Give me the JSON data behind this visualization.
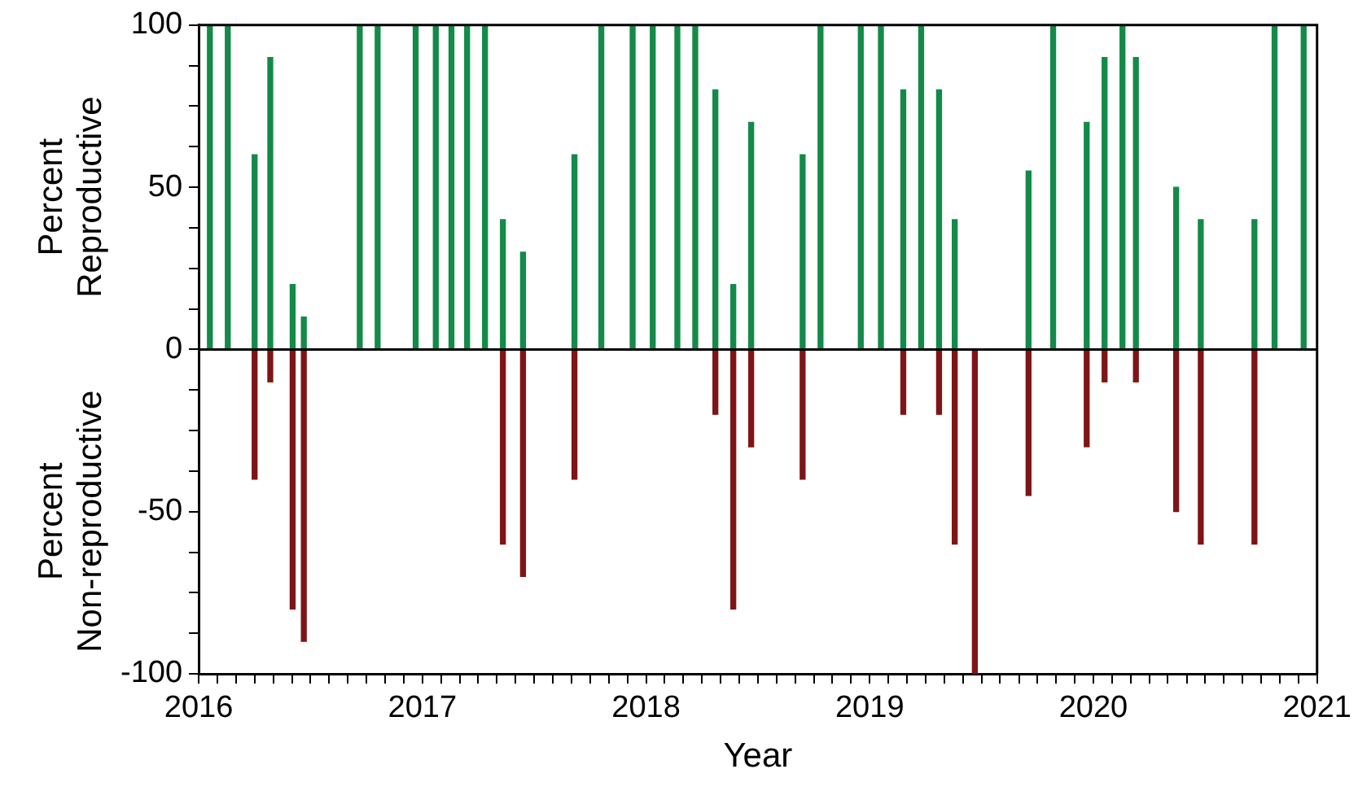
{
  "chart_data": {
    "type": "bar",
    "xlabel": "Year",
    "ylabel": "Percent Reproductive",
    "annotations": [
      "Percent Non-reproductive"
    ],
    "stacked": true,
    "x": [
      2016.05,
      2016.13,
      2016.25,
      2016.32,
      2016.42,
      2016.47,
      2016.72,
      2016.8,
      2016.97,
      2017.06,
      2017.13,
      2017.2,
      2017.28,
      2017.36,
      2017.45,
      2017.68,
      2017.8,
      2017.94,
      2018.03,
      2018.14,
      2018.22,
      2018.31,
      2018.39,
      2018.47,
      2018.7,
      2018.78,
      2018.96,
      2019.05,
      2019.15,
      2019.23,
      2019.31,
      2019.38,
      2019.47,
      2019.71,
      2019.82,
      2019.97,
      2020.05,
      2020.13,
      2020.19,
      2020.37,
      2020.48,
      2020.72,
      2020.81,
      2020.94
    ],
    "series": [
      {
        "color": "#138a48",
        "values": [
          100,
          100,
          60,
          90,
          20,
          10,
          100,
          100,
          100,
          100,
          100,
          100,
          100,
          40,
          30,
          60,
          100,
          100,
          100,
          100,
          100,
          80,
          20,
          70,
          60,
          100,
          100,
          100,
          80,
          100,
          80,
          40,
          0,
          55,
          100,
          70,
          90,
          100,
          90,
          50,
          40,
          40,
          100,
          100
        ]
      },
      {
        "color": "#7f1416",
        "values": [
          0,
          0,
          -40,
          -10,
          -80,
          -90,
          0,
          0,
          0,
          0,
          0,
          0,
          0,
          -60,
          -70,
          -40,
          0,
          0,
          0,
          0,
          0,
          -20,
          -80,
          -30,
          -40,
          0,
          0,
          0,
          -20,
          0,
          -20,
          -60,
          -100,
          -45,
          0,
          -30,
          -10,
          0,
          -10,
          -50,
          -60,
          -60,
          0,
          0
        ]
      }
    ],
    "xlim": [
      2016,
      2021
    ],
    "xticks": [
      2016,
      {
        "value": 2016.083,
        "label": null
      },
      {
        "value": 2016.167,
        "label": null
      },
      {
        "value": 2016.25,
        "label": null
      },
      {
        "value": 2016.333,
        "label": null
      },
      {
        "value": 2016.417,
        "label": null
      },
      {
        "value": 2016.5,
        "label": null
      },
      {
        "value": 2016.583,
        "label": null
      },
      {
        "value": 2016.667,
        "label": null
      },
      {
        "value": 2016.75,
        "label": null
      },
      {
        "value": 2016.833,
        "label": null
      },
      {
        "value": 2016.917,
        "label": null
      },
      2017,
      {
        "value": 2017.083,
        "label": null
      },
      {
        "value": 2017.167,
        "label": null
      },
      {
        "value": 2017.25,
        "label": null
      },
      {
        "value": 2017.333,
        "label": null
      },
      {
        "value": 2017.417,
        "label": null
      },
      {
        "value": 2017.5,
        "label": null
      },
      {
        "value": 2017.583,
        "label": null
      },
      {
        "value": 2017.667,
        "label": null
      },
      {
        "value": 2017.75,
        "label": null
      },
      {
        "value": 2017.833,
        "label": null
      },
      {
        "value": 2017.917,
        "label": null
      },
      2018,
      {
        "value": 2018.083,
        "label": null
      },
      {
        "value": 2018.167,
        "label": null
      },
      {
        "value": 2018.25,
        "label": null
      },
      {
        "value": 2018.333,
        "label": null
      },
      {
        "value": 2018.417,
        "label": null
      },
      {
        "value": 2018.5,
        "label": null
      },
      {
        "value": 2018.583,
        "label": null
      },
      {
        "value": 2018.667,
        "label": null
      },
      {
        "value": 2018.75,
        "label": null
      },
      {
        "value": 2018.833,
        "label": null
      },
      {
        "value": 2018.917,
        "label": null
      },
      2019,
      {
        "value": 2019.083,
        "label": null
      },
      {
        "value": 2019.167,
        "label": null
      },
      {
        "value": 2019.25,
        "label": null
      },
      {
        "value": 2019.333,
        "label": null
      },
      {
        "value": 2019.417,
        "label": null
      },
      {
        "value": 2019.5,
        "label": null
      },
      {
        "value": 2019.583,
        "label": null
      },
      {
        "value": 2019.667,
        "label": null
      },
      {
        "value": 2019.75,
        "label": null
      },
      {
        "value": 2019.833,
        "label": null
      },
      {
        "value": 2019.917,
        "label": null
      },
      2020,
      {
        "value": 2020.083,
        "label": null
      },
      {
        "value": 2020.167,
        "label": null
      },
      {
        "value": 2020.25,
        "label": null
      },
      {
        "value": 2020.333,
        "label": null
      },
      {
        "value": 2020.417,
        "label": null
      },
      {
        "value": 2020.5,
        "label": null
      },
      {
        "value": 2020.583,
        "label": null
      },
      {
        "value": 2020.667,
        "label": null
      },
      {
        "value": 2020.75,
        "label": null
      },
      {
        "value": 2020.833,
        "label": null
      },
      {
        "value": 2020.917,
        "label": null
      },
      2021
    ],
    "ylim": [
      -100,
      100
    ],
    "yticks": [
      -100,
      {
        "value": -87.5,
        "label": null
      },
      {
        "value": -75,
        "label": null
      },
      {
        "value": -62.5,
        "label": null
      },
      -50,
      {
        "value": -37.5,
        "label": null
      },
      {
        "value": -25,
        "label": null
      },
      {
        "value": -12.5,
        "label": null
      },
      0,
      {
        "value": 12.5,
        "label": null
      },
      {
        "value": 25,
        "label": null
      },
      {
        "value": 37.5,
        "label": null
      },
      50,
      {
        "value": 62.5,
        "label": null
      },
      {
        "value": 75,
        "label": null
      },
      {
        "value": 87.5,
        "label": null
      },
      100
    ],
    "ref_lines": [
      {
        "axis": "y",
        "value": 0,
        "color": "#000000"
      }
    ],
    "grid": false,
    "legend": false
  }
}
